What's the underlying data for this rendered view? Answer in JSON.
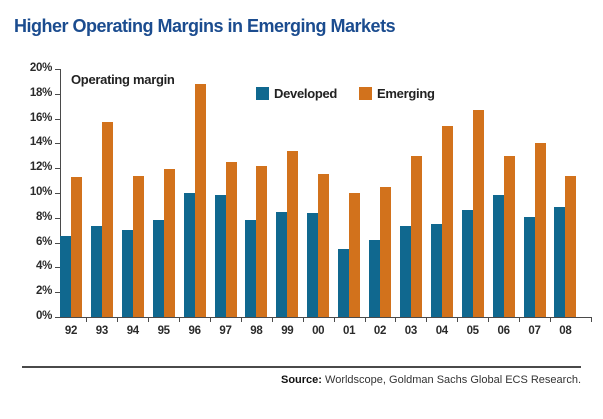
{
  "title": "Higher Operating Margins in Emerging Markets",
  "chart_data": {
    "type": "bar",
    "title": "Operating margin",
    "categories": [
      "92",
      "93",
      "94",
      "95",
      "96",
      "97",
      "98",
      "99",
      "00",
      "01",
      "02",
      "03",
      "04",
      "05",
      "06",
      "07",
      "08"
    ],
    "series": [
      {
        "name": "Developed",
        "color": "#10688f",
        "values": [
          6.5,
          7.3,
          7.0,
          7.8,
          10.0,
          9.8,
          7.8,
          8.5,
          8.4,
          5.5,
          6.2,
          7.3,
          7.5,
          8.6,
          9.8,
          8.1,
          8.9
        ]
      },
      {
        "name": "Emerging",
        "color": "#d2721c",
        "values": [
          11.3,
          15.7,
          11.4,
          11.9,
          18.8,
          12.5,
          12.2,
          13.4,
          11.5,
          10.0,
          10.5,
          13.0,
          15.4,
          16.7,
          13.0,
          14.0,
          11.4
        ]
      }
    ],
    "xlabel": "",
    "ylabel": "",
    "ylim": [
      0,
      20
    ],
    "ytick_step": 2,
    "ytick_suffix": "%",
    "grid": false,
    "legend_position": "top-inside"
  },
  "colors": {
    "title": "#1b4c8f",
    "axis": "#4a4a4a"
  },
  "source": {
    "label": "Source:",
    "text": " Worldscope, Goldman Sachs Global ECS Research."
  }
}
